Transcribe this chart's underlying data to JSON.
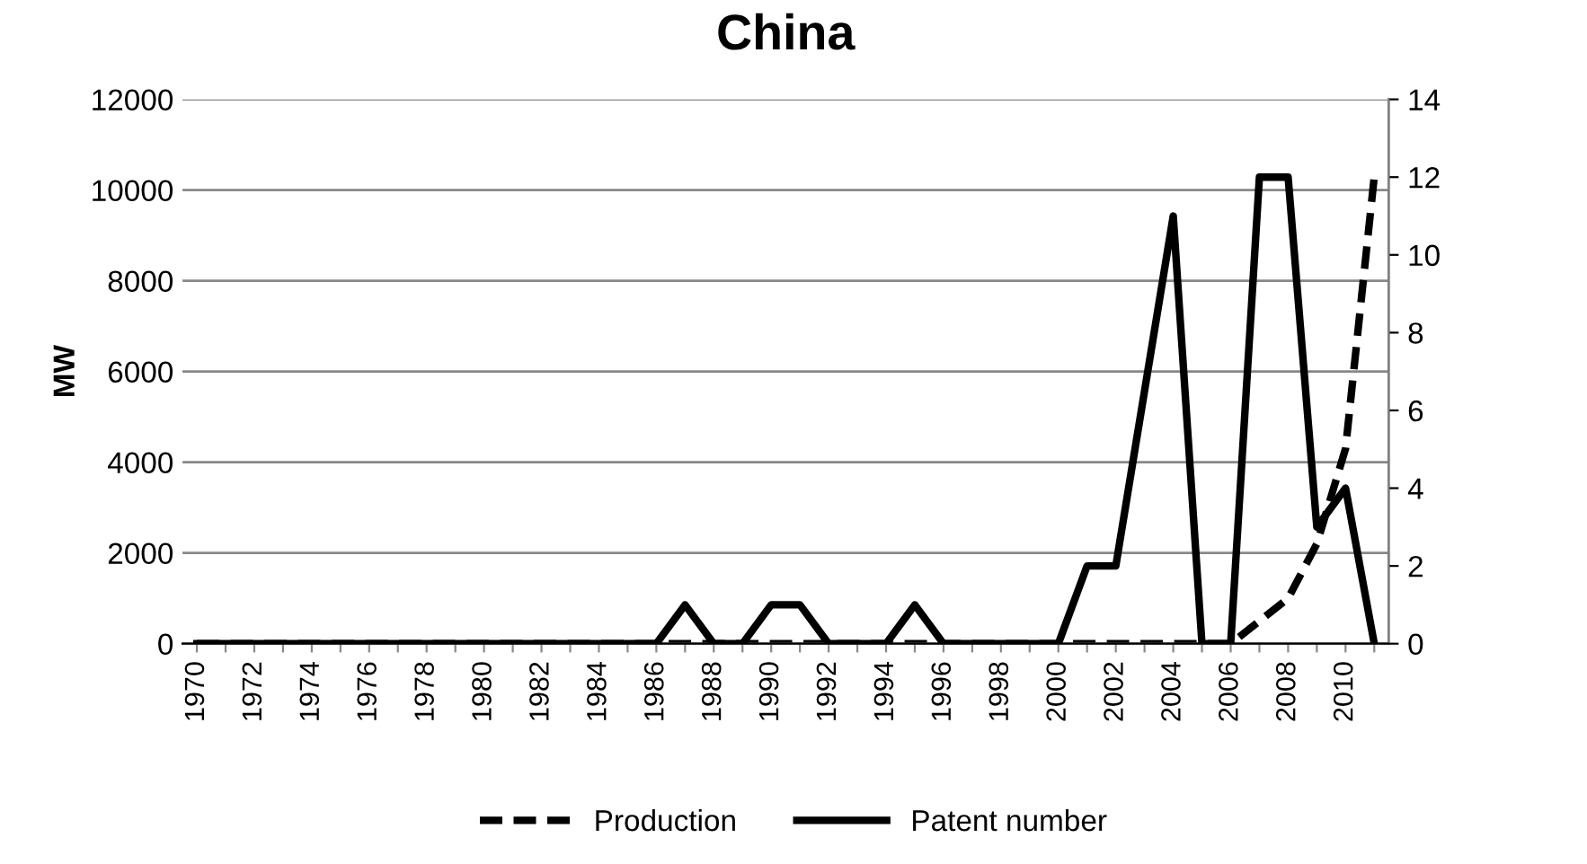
{
  "chart_data": {
    "type": "line",
    "title": "China",
    "ylabel": "MW",
    "categories": [
      "1970",
      null,
      "1972",
      null,
      "1974",
      null,
      "1976",
      null,
      "1978",
      null,
      "1980",
      null,
      "1982",
      null,
      "1984",
      null,
      "1986",
      null,
      "1988",
      null,
      "1990",
      null,
      "1992",
      null,
      "1994",
      null,
      "1996",
      null,
      "1998",
      null,
      "2000",
      null,
      "2002",
      null,
      "2004",
      null,
      "2006",
      null,
      "2008",
      null,
      "2010",
      null
    ],
    "series": [
      {
        "name": "Production",
        "color": "#000000",
        "line_style": "dashed",
        "values": [
          0,
          0,
          0,
          0,
          0,
          0,
          0,
          0,
          0,
          0,
          0,
          0,
          0,
          0,
          0,
          0,
          0,
          0,
          0,
          0,
          0,
          0,
          0,
          0,
          0,
          0,
          0,
          0,
          0,
          0,
          0,
          0,
          0,
          0,
          0,
          0,
          0,
          500,
          1000,
          2200,
          4300,
          10300
        ]
      },
      {
        "name": "Patent number",
        "color": "#000000",
        "line_style": "solid",
        "axis": "y2",
        "values": [
          0,
          0,
          0,
          0,
          0,
          0,
          0,
          0,
          0,
          0,
          0,
          0,
          0,
          0,
          0,
          0,
          0,
          1,
          0,
          0,
          1,
          1,
          0,
          0,
          0,
          1,
          0,
          0,
          0,
          0,
          0,
          2,
          2,
          6.5,
          11,
          0,
          0,
          12,
          12,
          3,
          4,
          0
        ]
      }
    ],
    "ylim": [
      0,
      12000
    ],
    "yticks": [
      0,
      2000,
      4000,
      6000,
      8000,
      10000,
      12000
    ],
    "y2lim": [
      0,
      14
    ],
    "y2ticks": [
      0,
      2,
      4,
      6,
      8,
      10,
      12,
      14
    ],
    "grid": "y",
    "legend": "bottom",
    "marker": "none"
  }
}
